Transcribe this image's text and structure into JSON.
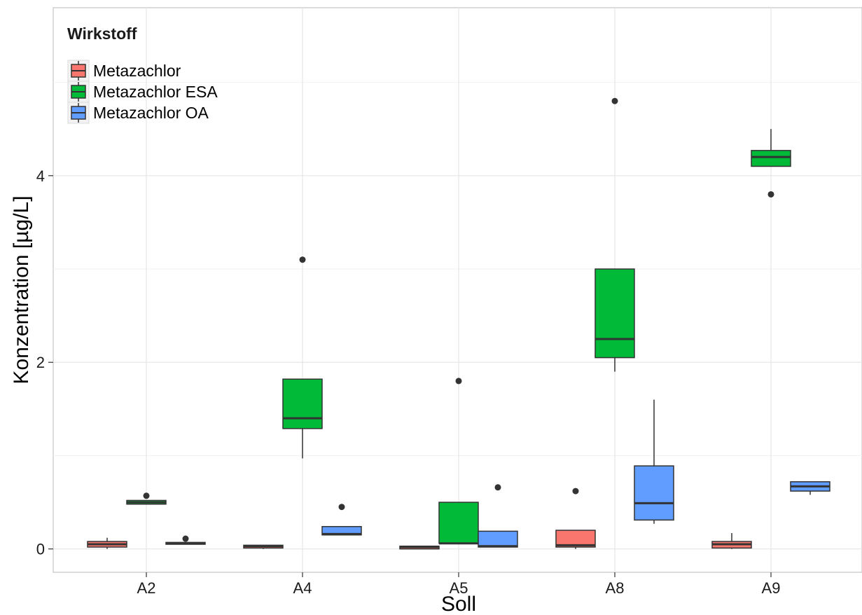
{
  "chart_data": {
    "type": "boxplot",
    "xlabel": "Soll",
    "ylabel": "Konzentration [µg/L]",
    "categories": [
      "A2",
      "A4",
      "A5",
      "A8",
      "A9"
    ],
    "ylim": [
      -0.25,
      5.8
    ],
    "yticks": [
      0,
      2,
      4
    ],
    "grid": true,
    "legend": {
      "title": "Wirkstoff",
      "position": "top-left"
    },
    "series": [
      {
        "name": "Metazachlor",
        "color": "#F8766D",
        "boxes": [
          {
            "category": "A2",
            "min": 0.0,
            "q1": 0.02,
            "median": 0.05,
            "q3": 0.08,
            "max": 0.12,
            "outliers": []
          },
          {
            "category": "A4",
            "min": 0.0,
            "q1": 0.01,
            "median": 0.03,
            "q3": 0.04,
            "max": 0.04,
            "outliers": []
          },
          {
            "category": "A5",
            "min": 0.0,
            "q1": 0.0,
            "median": 0.02,
            "q3": 0.03,
            "max": 0.03,
            "outliers": []
          },
          {
            "category": "A8",
            "min": 0.0,
            "q1": 0.02,
            "median": 0.04,
            "q3": 0.2,
            "max": 0.2,
            "outliers": [
              0.62
            ]
          },
          {
            "category": "A9",
            "min": 0.0,
            "q1": 0.01,
            "median": 0.05,
            "q3": 0.08,
            "max": 0.17,
            "outliers": []
          }
        ]
      },
      {
        "name": "Metazachlor ESA",
        "color": "#00BA38",
        "boxes": [
          {
            "category": "A2",
            "min": 0.48,
            "q1": 0.48,
            "median": 0.5,
            "q3": 0.52,
            "max": 0.52,
            "outliers": [
              0.57
            ]
          },
          {
            "category": "A4",
            "min": 0.97,
            "q1": 1.29,
            "median": 1.4,
            "q3": 1.82,
            "max": 1.82,
            "outliers": [
              3.1
            ]
          },
          {
            "category": "A5",
            "min": 0.06,
            "q1": 0.06,
            "median": 0.06,
            "q3": 0.5,
            "max": 0.5,
            "outliers": [
              1.8
            ]
          },
          {
            "category": "A8",
            "min": 1.9,
            "q1": 2.05,
            "median": 2.25,
            "q3": 3.0,
            "max": 3.0,
            "outliers": [
              4.8
            ]
          },
          {
            "category": "A9",
            "min": 4.1,
            "q1": 4.1,
            "median": 4.2,
            "q3": 4.27,
            "max": 4.5,
            "outliers": [
              3.8
            ]
          }
        ]
      },
      {
        "name": "Metazachlor OA",
        "color": "#619CFF",
        "boxes": [
          {
            "category": "A2",
            "min": 0.05,
            "q1": 0.05,
            "median": 0.06,
            "q3": 0.07,
            "max": 0.07,
            "outliers": [
              0.11
            ]
          },
          {
            "category": "A4",
            "min": 0.15,
            "q1": 0.15,
            "median": 0.16,
            "q3": 0.24,
            "max": 0.24,
            "outliers": [
              0.45
            ]
          },
          {
            "category": "A5",
            "min": 0.02,
            "q1": 0.02,
            "median": 0.03,
            "q3": 0.19,
            "max": 0.19,
            "outliers": [
              0.66
            ]
          },
          {
            "category": "A8",
            "min": 0.27,
            "q1": 0.31,
            "median": 0.49,
            "q3": 0.89,
            "max": 1.6,
            "outliers": []
          },
          {
            "category": "A9",
            "min": 0.58,
            "q1": 0.62,
            "median": 0.67,
            "q3": 0.72,
            "max": 0.72,
            "outliers": []
          }
        ]
      }
    ]
  }
}
